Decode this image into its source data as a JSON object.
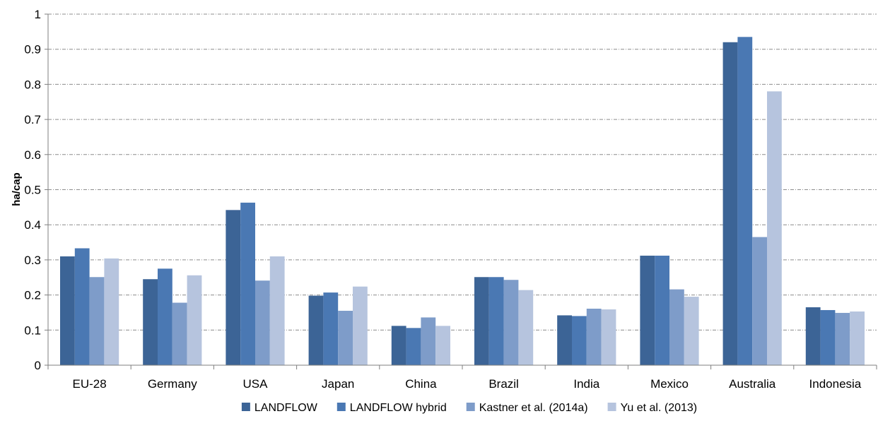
{
  "chart_data": {
    "type": "bar",
    "title": "",
    "xlabel": "",
    "ylabel": "ha/cap",
    "ylim": [
      0,
      1
    ],
    "yticks": [
      "0",
      "0.1",
      "0.2",
      "0.3",
      "0.4",
      "0.5",
      "0.6",
      "0.7",
      "0.8",
      "0.9",
      "1"
    ],
    "grid": true,
    "legend_position": "bottom",
    "categories": [
      "EU-28",
      "Germany",
      "USA",
      "Japan",
      "China",
      "Brazil",
      "India",
      "Mexico",
      "Australia",
      "Indonesia"
    ],
    "series": [
      {
        "name": "LANDFLOW",
        "color": "#3c6496",
        "values": [
          0.31,
          0.245,
          0.442,
          0.198,
          0.112,
          0.251,
          0.142,
          0.312,
          0.92,
          0.165
        ]
      },
      {
        "name": "LANDFLOW hybrid",
        "color": "#4a78b3",
        "values": [
          0.333,
          0.275,
          0.463,
          0.207,
          0.106,
          0.251,
          0.14,
          0.312,
          0.935,
          0.157
        ]
      },
      {
        "name": "Kastner et al. (2014a)",
        "color": "#7e9cc9",
        "values": [
          0.251,
          0.178,
          0.241,
          0.155,
          0.136,
          0.243,
          0.161,
          0.216,
          0.365,
          0.149
        ]
      },
      {
        "name": "Yu et al. (2013)",
        "color": "#b6c4de",
        "values": [
          0.304,
          0.256,
          0.31,
          0.224,
          0.112,
          0.214,
          0.159,
          0.195,
          0.78,
          0.153
        ]
      }
    ]
  }
}
